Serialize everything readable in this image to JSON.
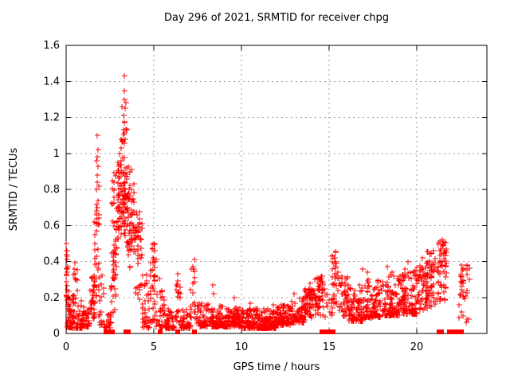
{
  "page": {
    "background": "#ffffff"
  },
  "chart_data": {
    "type": "scatter",
    "title": "Day 296 of 2021, SRMTID for receiver chpg",
    "xlabel": "GPS time / hours",
    "ylabel": "SRMTID / TECUs",
    "xlim": [
      0,
      24
    ],
    "ylim": [
      0,
      1.6
    ],
    "xticks": [
      0,
      5,
      10,
      15,
      20
    ],
    "yticks": [
      0,
      0.2,
      0.4,
      0.6,
      0.8,
      1,
      1.2,
      1.4,
      1.6
    ],
    "grid": true,
    "legend_position": "none",
    "marker": "plus",
    "marker_color": "#ff0000",
    "frame_color": "#000000",
    "grid_color": "#9c9c9c",
    "series_name": "SRMTID",
    "max_point": [
      3.3,
      1.43
    ],
    "zero_flag_marker": "filled-square",
    "zero_flag_x": [
      2.28,
      2.42,
      2.65,
      3.42,
      3.55,
      5.35,
      6.35,
      7.3,
      14.58,
      14.72,
      14.98,
      15.1,
      15.22,
      21.28,
      21.42,
      21.85,
      22.02,
      22.12,
      22.4,
      22.55
    ],
    "feature_points": [
      [
        0.02,
        0.5
      ],
      [
        0.05,
        0.46
      ],
      [
        0.03,
        0.41
      ],
      [
        0.07,
        0.37
      ],
      [
        1.77,
        1.1
      ],
      [
        1.75,
        0.98
      ],
      [
        1.8,
        0.93
      ],
      [
        1.76,
        0.88
      ],
      [
        1.79,
        0.84
      ],
      [
        1.74,
        0.8
      ],
      [
        1.81,
        0.74
      ],
      [
        1.78,
        0.7
      ],
      [
        3.3,
        1.43
      ],
      [
        3.33,
        1.35
      ],
      [
        3.3,
        1.3
      ],
      [
        3.36,
        1.25
      ],
      [
        3.29,
        1.21
      ],
      [
        3.34,
        1.17
      ],
      [
        3.26,
        1.13
      ],
      [
        3.38,
        1.08
      ],
      [
        2.95,
        0.95
      ],
      [
        3.05,
        1.0
      ],
      [
        3.15,
        1.03
      ],
      [
        5.0,
        0.5
      ],
      [
        5.05,
        0.46
      ],
      [
        6.35,
        0.33
      ],
      [
        6.38,
        0.29
      ],
      [
        7.3,
        0.41
      ],
      [
        7.28,
        0.36
      ],
      [
        7.32,
        0.31
      ],
      [
        8.35,
        0.27
      ],
      [
        8.4,
        0.22
      ],
      [
        9.6,
        0.2
      ],
      [
        10.5,
        0.17
      ],
      [
        11.8,
        0.16
      ],
      [
        13.0,
        0.22
      ],
      [
        13.9,
        0.28
      ],
      [
        14.2,
        0.3
      ],
      [
        14.9,
        0.15
      ],
      [
        15.05,
        0.12
      ],
      [
        15.35,
        0.45
      ],
      [
        15.3,
        0.42
      ],
      [
        15.4,
        0.39
      ],
      [
        16.9,
        0.36
      ],
      [
        17.2,
        0.34
      ],
      [
        18.3,
        0.37
      ],
      [
        18.6,
        0.34
      ],
      [
        19.3,
        0.36
      ],
      [
        19.5,
        0.4
      ],
      [
        20.3,
        0.42
      ],
      [
        21.45,
        0.52
      ],
      [
        21.55,
        0.51
      ],
      [
        21.5,
        0.49
      ],
      [
        21.35,
        0.47
      ],
      [
        21.6,
        0.46
      ],
      [
        21.4,
        0.44
      ],
      [
        22.55,
        0.38
      ],
      [
        22.6,
        0.35
      ],
      [
        22.5,
        0.32
      ],
      [
        22.65,
        0.28
      ],
      [
        22.8,
        0.06
      ]
    ],
    "density_bands": {
      "format": [
        "x_start",
        "x_end",
        "y_min",
        "y_max",
        "n_points",
        "bias"
      ],
      "segments": [
        [
          0.0,
          0.12,
          0.15,
          0.5,
          14,
          "uni"
        ],
        [
          0.05,
          0.95,
          0.03,
          0.24,
          95,
          "lo"
        ],
        [
          0.3,
          0.65,
          0.24,
          0.4,
          8,
          "uni"
        ],
        [
          0.95,
          1.35,
          0.04,
          0.16,
          40,
          "lo"
        ],
        [
          1.35,
          1.65,
          0.07,
          0.35,
          30,
          "uni"
        ],
        [
          1.6,
          1.9,
          0.15,
          0.62,
          26,
          "uni"
        ],
        [
          1.7,
          1.88,
          0.62,
          1.02,
          10,
          "uni"
        ],
        [
          1.88,
          2.15,
          0.05,
          0.38,
          22,
          "lo"
        ],
        [
          2.15,
          2.58,
          0.03,
          0.12,
          26,
          "lo"
        ],
        [
          2.55,
          2.85,
          0.08,
          0.55,
          26,
          "uni"
        ],
        [
          2.6,
          3.0,
          0.3,
          0.92,
          40,
          "uni"
        ],
        [
          3.0,
          3.5,
          0.48,
          1.05,
          95,
          "mid"
        ],
        [
          3.15,
          3.45,
          1.05,
          1.32,
          12,
          "uni"
        ],
        [
          3.5,
          3.95,
          0.33,
          0.97,
          60,
          "mid"
        ],
        [
          3.95,
          4.35,
          0.18,
          0.68,
          45,
          "uni"
        ],
        [
          4.35,
          4.8,
          0.03,
          0.35,
          40,
          "lo"
        ],
        [
          4.8,
          5.15,
          0.05,
          0.5,
          35,
          "uni"
        ],
        [
          5.15,
          5.6,
          0.04,
          0.33,
          30,
          "lo"
        ],
        [
          5.6,
          6.2,
          0.03,
          0.14,
          48,
          "lo"
        ],
        [
          6.2,
          6.5,
          0.05,
          0.33,
          20,
          "uni"
        ],
        [
          6.5,
          7.1,
          0.03,
          0.14,
          48,
          "lo"
        ],
        [
          7.1,
          7.45,
          0.05,
          0.4,
          16,
          "uni"
        ],
        [
          7.45,
          8.2,
          0.04,
          0.17,
          62,
          "lo"
        ],
        [
          8.2,
          9.0,
          0.04,
          0.16,
          90,
          "lo"
        ],
        [
          9.0,
          10.0,
          0.04,
          0.15,
          110,
          "lo"
        ],
        [
          10.0,
          11.0,
          0.03,
          0.14,
          112,
          "lo"
        ],
        [
          11.0,
          12.0,
          0.03,
          0.14,
          112,
          "lo"
        ],
        [
          12.0,
          12.8,
          0.05,
          0.16,
          88,
          "lo"
        ],
        [
          12.8,
          13.6,
          0.06,
          0.2,
          80,
          "lo"
        ],
        [
          13.6,
          14.3,
          0.08,
          0.25,
          70,
          "uni"
        ],
        [
          14.3,
          14.75,
          0.1,
          0.32,
          42,
          "uni"
        ],
        [
          14.75,
          15.15,
          0.08,
          0.22,
          8,
          "uni"
        ],
        [
          15.15,
          15.55,
          0.1,
          0.46,
          35,
          "uni"
        ],
        [
          15.55,
          16.1,
          0.09,
          0.32,
          48,
          "uni"
        ],
        [
          16.1,
          17.0,
          0.07,
          0.28,
          85,
          "lo"
        ],
        [
          17.0,
          18.0,
          0.09,
          0.31,
          95,
          "lo"
        ],
        [
          18.0,
          19.0,
          0.1,
          0.33,
          95,
          "lo"
        ],
        [
          19.0,
          20.0,
          0.11,
          0.35,
          100,
          "lo"
        ],
        [
          20.0,
          20.6,
          0.13,
          0.4,
          55,
          "uni"
        ],
        [
          20.6,
          21.2,
          0.15,
          0.46,
          55,
          "uni"
        ],
        [
          21.2,
          21.8,
          0.18,
          0.52,
          52,
          "uni"
        ],
        [
          22.4,
          23.0,
          0.07,
          0.38,
          30,
          "uni"
        ]
      ]
    }
  }
}
